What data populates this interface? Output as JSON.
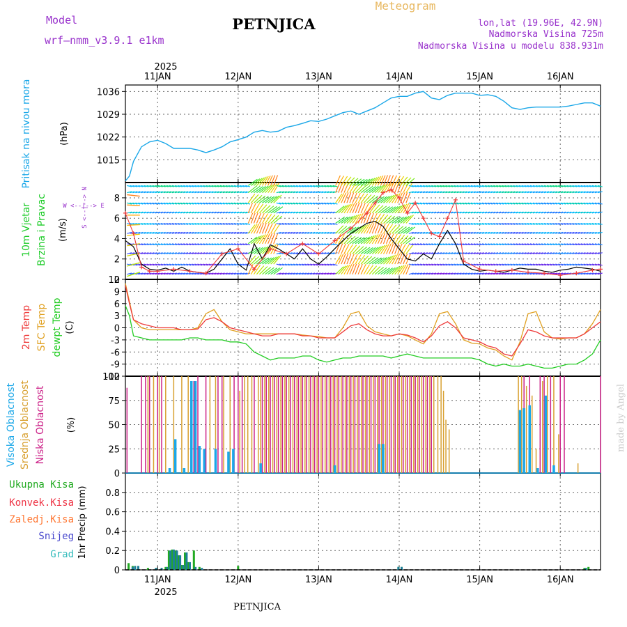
{
  "header": {
    "model_label": "Model",
    "model_name": "wrf—nmm_v3.9.1  e1km",
    "station_title": "PETNJICA",
    "meteogram_label": "Meteogram",
    "coords": "lon,lat (19.96E, 42.9N)",
    "altitude": "Nadmorska Visina 725m",
    "model_altitude": "Nadmorska Visina u modelu 838.931m",
    "footer_station": "PETNJICA",
    "credit": "made by Angel"
  },
  "colors": {
    "pressure": "#1aa7e8",
    "wind_label": "#1fcc2a",
    "temp2m": "#ee3a3a",
    "sfc": "#e0a020",
    "dewpt": "#22cc22",
    "high_cloud": "#1aa7e8",
    "mid_cloud": "#d8a030",
    "low_cloud": "#cc2288",
    "precip_total": "#22aa22",
    "precip_conv": "#ee3344",
    "precip_frz": "#ff7733",
    "precip_snow": "#4444cc",
    "precip_grad": "#33bbbb",
    "purple": "#9933cc"
  },
  "chart_data": [
    {
      "type": "line",
      "title": "",
      "ylabel": "Pritisak na nivou mora",
      "yunit": "(hPa)",
      "x_ticks": [
        "11JAN",
        "12JAN",
        "13JAN",
        "14JAN",
        "15JAN",
        "16JAN"
      ],
      "year_label": "2025",
      "xlim_days": [
        10.6,
        16.5
      ],
      "ylim": [
        1008,
        1038
      ],
      "yticks": [
        1015,
        1022,
        1029,
        1036
      ],
      "grid": true,
      "series": [
        {
          "x": [
            10.6,
            10.65,
            10.7,
            10.8,
            10.9,
            11.0,
            11.1,
            11.2,
            11.3,
            11.4,
            11.5,
            11.6,
            11.7,
            11.8,
            11.9,
            12.0,
            12.1,
            12.2,
            12.3,
            12.4,
            12.5,
            12.6,
            12.7,
            12.8,
            12.9,
            13.0,
            13.1,
            13.2,
            13.3,
            13.4,
            13.5,
            13.6,
            13.7,
            13.8,
            13.9,
            14.0,
            14.1,
            14.2,
            14.3,
            14.4,
            14.5,
            14.6,
            14.7,
            14.8,
            14.9,
            15.0,
            15.1,
            15.2,
            15.3,
            15.4,
            15.5,
            15.6,
            15.7,
            15.8,
            15.9,
            16.0,
            16.1,
            16.2,
            16.3,
            16.4,
            16.5
          ],
          "values": [
            1008.5,
            1010,
            1014.5,
            1019,
            1020.5,
            1021,
            1020,
            1018.5,
            1018.5,
            1018.5,
            1018,
            1017.2,
            1018,
            1019,
            1020.5,
            1021.2,
            1022,
            1023.5,
            1024,
            1023.5,
            1023.8,
            1025,
            1025.5,
            1026.2,
            1027,
            1026.8,
            1027.5,
            1028.5,
            1029.5,
            1030,
            1029,
            1030,
            1031,
            1032.5,
            1034,
            1034.5,
            1034.5,
            1035.5,
            1036,
            1034,
            1033.5,
            1034.8,
            1035.5,
            1035.5,
            1035.5,
            1034.8,
            1035,
            1034.5,
            1033,
            1031,
            1030.5,
            1031,
            1031.2,
            1031.2,
            1031.2,
            1031.2,
            1031.5,
            1032,
            1032.5,
            1032.5,
            1031.5
          ]
        }
      ]
    },
    {
      "type": "line",
      "title": "",
      "ylabel_lines": [
        "10m Vjetar",
        "Brzina i Pravac"
      ],
      "yunit": "(m/s)",
      "compass": "W <--|--> E",
      "compass_v": "S <--|--> N",
      "ylim": [
        0,
        9.5
      ],
      "yticks": [
        0,
        2,
        4,
        6,
        8
      ],
      "grid": true,
      "wind_row_levels": [
        0.5,
        1.5,
        2.5,
        3.5,
        4.5,
        5.5,
        6.5,
        7.5,
        8.5,
        9.2
      ],
      "speed_line_x": [
        10.6,
        10.7,
        10.8,
        10.9,
        11.0,
        11.1,
        11.2,
        11.3,
        11.4,
        11.5,
        11.6,
        11.7,
        11.8,
        11.9,
        12.0,
        12.1,
        12.2,
        12.3,
        12.4,
        12.5,
        12.6,
        12.7,
        12.8,
        12.9,
        13.0,
        13.1,
        13.2,
        13.3,
        13.4,
        13.5,
        13.6,
        13.7,
        13.8,
        13.9,
        14.0,
        14.1,
        14.2,
        14.3,
        14.4,
        14.5,
        14.6,
        14.7,
        14.8,
        14.9,
        15.0,
        15.1,
        15.2,
        15.3,
        15.4,
        15.5,
        15.6,
        15.7,
        15.8,
        15.9,
        16.0,
        16.1,
        16.2,
        16.3,
        16.4,
        16.5
      ],
      "speed_line": [
        3.8,
        3.2,
        1.5,
        1.0,
        0.9,
        1.1,
        0.8,
        1.2,
        0.8,
        0.7,
        0.6,
        1.0,
        2.0,
        3.0,
        1.5,
        0.9,
        3.5,
        2.0,
        3.4,
        3.0,
        2.5,
        2.0,
        3.0,
        2.0,
        1.5,
        2.2,
        3.0,
        3.8,
        4.5,
        5.0,
        5.5,
        5.7,
        5.2,
        4.0,
        3.0,
        2.0,
        1.8,
        2.5,
        2.0,
        3.5,
        4.8,
        3.5,
        1.5,
        1.0,
        0.8,
        0.9,
        0.8,
        0.7,
        0.9,
        1.1,
        1.0,
        1.0,
        0.8,
        0.7,
        0.9,
        1.0,
        1.2,
        1.1,
        1.0,
        0.8
      ],
      "gust_x": [
        10.6,
        10.7,
        10.8,
        10.9,
        11.0,
        11.2,
        11.4,
        11.6,
        11.8,
        12.0,
        12.2,
        12.4,
        12.6,
        12.8,
        13.0,
        13.2,
        13.4,
        13.6,
        13.7,
        13.8,
        13.9,
        14.0,
        14.1,
        14.2,
        14.3,
        14.4,
        14.5,
        14.6,
        14.7,
        14.8,
        15.0,
        15.2,
        15.4,
        15.6,
        15.8,
        16.0,
        16.2,
        16.4,
        16.5
      ],
      "gust": [
        6.5,
        4.5,
        1.2,
        0.8,
        0.8,
        1.0,
        0.8,
        0.6,
        2.5,
        3.0,
        1.0,
        3.0,
        2.5,
        3.5,
        2.5,
        3.8,
        5.0,
        6.5,
        7.5,
        8.5,
        8.8,
        8.0,
        6.5,
        7.5,
        6.0,
        4.5,
        4.2,
        6.0,
        7.8,
        1.8,
        1.0,
        0.8,
        0.9,
        0.7,
        0.6,
        0.4,
        0.6,
        0.9,
        1.0
      ]
    },
    {
      "type": "line",
      "title": "",
      "ylabel_lines": [
        "2m Temp",
        "SFC Temp",
        "dewpt Temp"
      ],
      "yunit": "(C)",
      "ylim": [
        -12,
        12
      ],
      "yticks": [
        -12,
        -9,
        -6,
        -3,
        0,
        3,
        6,
        9,
        12
      ],
      "grid": true,
      "x": [
        10.6,
        10.65,
        10.7,
        10.8,
        10.9,
        11.0,
        11.1,
        11.2,
        11.3,
        11.4,
        11.5,
        11.6,
        11.7,
        11.8,
        11.9,
        12.0,
        12.1,
        12.2,
        12.3,
        12.4,
        12.5,
        12.6,
        12.7,
        12.8,
        12.9,
        13.0,
        13.1,
        13.2,
        13.3,
        13.4,
        13.5,
        13.6,
        13.7,
        13.8,
        13.9,
        14.0,
        14.1,
        14.2,
        14.3,
        14.4,
        14.5,
        14.6,
        14.7,
        14.8,
        14.9,
        15.0,
        15.1,
        15.2,
        15.3,
        15.4,
        15.5,
        15.6,
        15.7,
        15.8,
        15.9,
        16.0,
        16.1,
        16.2,
        16.3,
        16.4,
        16.5
      ],
      "series": [
        {
          "name": "2m Temp",
          "values": [
            10.5,
            6,
            2,
            1,
            0.5,
            0,
            0,
            0,
            -0.5,
            -0.5,
            -0.3,
            2,
            2.5,
            1.5,
            0,
            -0.5,
            -1,
            -1.5,
            -2,
            -2,
            -1.5,
            -1.5,
            -1.5,
            -2,
            -2,
            -2.5,
            -2.5,
            -2.5,
            -1,
            0.5,
            1,
            -0.5,
            -1.5,
            -2,
            -2,
            -1.5,
            -1.8,
            -2.5,
            -3.5,
            -2,
            0.5,
            1.5,
            0,
            -2.5,
            -3,
            -3.5,
            -4.5,
            -5,
            -6.5,
            -7,
            -4,
            -0.5,
            -1,
            -2,
            -2.5,
            -2.5,
            -2.5,
            -2.5,
            -1.5,
            0,
            1.5
          ]
        },
        {
          "name": "SFC Temp",
          "values": [
            11,
            6.5,
            2,
            0,
            -0.5,
            -0.5,
            -0.5,
            -0.5,
            -0.5,
            -0.5,
            0,
            3.5,
            4.5,
            1.5,
            -0.5,
            -1,
            -1.5,
            -1.5,
            -1.5,
            -1.5,
            -1.5,
            -1.5,
            -1.5,
            -1.8,
            -2,
            -2.2,
            -2.5,
            -2.5,
            0,
            3.5,
            4,
            0.5,
            -1,
            -1.5,
            -2,
            -1.5,
            -2,
            -3,
            -4,
            -1.5,
            3.5,
            4,
            1,
            -3,
            -3.8,
            -4,
            -5,
            -5.5,
            -7,
            -8,
            -3.5,
            3.5,
            4,
            -1,
            -2.5,
            -2.8,
            -2.5,
            -2.5,
            -1.5,
            1,
            4.5
          ]
        },
        {
          "name": "dewpt Temp",
          "values": [
            5.5,
            3,
            -2,
            -2.5,
            -3,
            -3,
            -3,
            -3,
            -3,
            -2.5,
            -2.5,
            -3,
            -3,
            -3,
            -3.5,
            -3.5,
            -4,
            -6,
            -7,
            -8,
            -7.5,
            -7.5,
            -7.5,
            -7,
            -7,
            -8,
            -8.5,
            -8,
            -7.5,
            -7.5,
            -7,
            -7,
            -7,
            -7,
            -7.5,
            -7,
            -6.5,
            -7,
            -7.5,
            -7.5,
            -7.5,
            -7.5,
            -7.5,
            -7.5,
            -7.5,
            -8,
            -9,
            -9.5,
            -9,
            -9.5,
            -9.5,
            -9,
            -9.5,
            -10,
            -10,
            -9.5,
            -9,
            -9,
            -8,
            -6.5,
            -3
          ]
        }
      ]
    },
    {
      "type": "bar",
      "title": "",
      "ylabel_lines": [
        "Visoka Oblacnost",
        "Srednja Oblacnost",
        "Niska Oblacnost"
      ],
      "yunit": "(%)",
      "ylim": [
        0,
        100
      ],
      "yticks": [
        0,
        25,
        50,
        75,
        100
      ],
      "grid": true,
      "bars": {
        "low_x": [
          10.62,
          10.8,
          10.85,
          10.9,
          11.0,
          11.05,
          11.45,
          11.5,
          11.6,
          11.75,
          11.8,
          11.95,
          12.0,
          12.05,
          12.2,
          12.3,
          12.35,
          12.4,
          12.45,
          12.5,
          12.55,
          12.6,
          12.65,
          12.7,
          12.75,
          12.8,
          12.85,
          12.9,
          12.95,
          13.0,
          13.05,
          13.1,
          13.15,
          13.2,
          13.25,
          13.3,
          13.35,
          13.4,
          13.45,
          13.5,
          13.55,
          13.6,
          13.65,
          13.7,
          13.75,
          13.8,
          13.85,
          13.9,
          13.95,
          14.0,
          14.05,
          14.1,
          14.15,
          14.2,
          14.25,
          14.3,
          14.35,
          14.4,
          15.55,
          15.62,
          15.75,
          15.8,
          15.88,
          16.0,
          16.05,
          16.5
        ],
        "low_v": [
          88,
          100,
          100,
          100,
          100,
          100,
          95,
          100,
          100,
          100,
          100,
          100,
          100,
          100,
          100,
          100,
          100,
          100,
          100,
          100,
          100,
          100,
          100,
          100,
          100,
          100,
          100,
          100,
          100,
          100,
          100,
          100,
          100,
          100,
          100,
          100,
          100,
          100,
          100,
          100,
          100,
          100,
          100,
          100,
          100,
          100,
          100,
          100,
          100,
          100,
          100,
          100,
          100,
          100,
          100,
          100,
          100,
          100,
          100,
          100,
          100,
          100,
          100,
          100,
          100,
          100
        ],
        "mid_x": [
          10.88,
          10.95,
          11.02,
          11.1,
          11.2,
          11.3,
          11.38,
          11.65,
          11.72,
          11.82,
          11.9,
          12.02,
          12.08,
          12.12,
          12.17,
          12.25,
          12.28,
          12.33,
          12.38,
          12.43,
          12.48,
          12.53,
          12.58,
          12.63,
          12.68,
          12.73,
          12.78,
          12.83,
          12.88,
          12.93,
          12.98,
          13.03,
          13.08,
          13.13,
          13.18,
          13.23,
          13.28,
          13.33,
          13.38,
          13.43,
          13.48,
          13.53,
          13.58,
          13.63,
          13.68,
          13.73,
          13.78,
          13.83,
          13.88,
          13.93,
          13.98,
          14.03,
          14.08,
          14.13,
          14.18,
          14.23,
          14.28,
          14.33,
          14.38,
          14.43,
          14.48,
          14.52,
          14.55,
          14.58,
          14.62,
          15.48,
          15.52,
          15.58,
          15.65,
          15.7,
          15.78,
          15.84,
          15.92,
          15.98,
          16.22
        ],
        "mid_v": [
          100,
          100,
          100,
          100,
          100,
          100,
          100,
          100,
          100,
          100,
          100,
          85,
          100,
          100,
          100,
          100,
          100,
          100,
          100,
          100,
          100,
          100,
          100,
          100,
          100,
          100,
          100,
          100,
          100,
          100,
          100,
          100,
          100,
          100,
          100,
          100,
          100,
          100,
          100,
          100,
          100,
          100,
          100,
          100,
          100,
          100,
          100,
          100,
          100,
          100,
          100,
          100,
          100,
          100,
          100,
          100,
          100,
          100,
          100,
          100,
          100,
          100,
          85,
          55,
          45,
          100,
          100,
          90,
          80,
          25,
          95,
          100,
          100,
          40,
          10
        ],
        "high_x": [
          11.15,
          11.22,
          11.33,
          11.42,
          11.47,
          11.52,
          11.58,
          11.72,
          11.88,
          11.94,
          12.28,
          13.2,
          13.75,
          13.8,
          15.5,
          15.55,
          15.62,
          15.72,
          15.82,
          15.92
        ],
        "high_v": [
          5,
          35,
          5,
          95,
          95,
          28,
          25,
          25,
          22,
          25,
          10,
          8,
          30,
          30,
          65,
          67,
          70,
          5,
          80,
          8
        ]
      }
    },
    {
      "type": "bar",
      "title": "",
      "ylabel": "1hr Precip (mm)",
      "legend": [
        "Ukupna  Kisa",
        "Konvek.Kisa",
        "Zaledj.Kisa",
        "Snijeg",
        "Grad"
      ],
      "ylim": [
        0,
        1.0
      ],
      "yticks": [
        0,
        0.2,
        0.4,
        0.6,
        0.8
      ],
      "grid": true,
      "total_x": [
        10.64,
        10.69,
        10.72,
        10.76,
        10.88,
        10.98,
        11.05,
        11.1,
        11.14,
        11.18,
        11.22,
        11.26,
        11.3,
        11.34,
        11.38,
        11.45,
        11.52,
        12.0,
        13.99,
        14.03,
        16.3,
        16.35
      ],
      "total_v": [
        0.07,
        0.04,
        0.04,
        0.04,
        0.02,
        0.02,
        0.02,
        0.03,
        0.2,
        0.21,
        0.2,
        0.15,
        0.05,
        0.18,
        0.08,
        0.2,
        0.03,
        0.04,
        0.03,
        0.03,
        0.02,
        0.03
      ],
      "snow_x": [
        10.69,
        10.72,
        10.76,
        10.98,
        11.05,
        11.12,
        11.16,
        11.2,
        11.24,
        11.28,
        11.32,
        11.36,
        11.4,
        11.47,
        11.55,
        13.99,
        14.03,
        16.32
      ],
      "snow_v": [
        0.03,
        0.04,
        0.04,
        0.02,
        0.02,
        0.03,
        0.2,
        0.21,
        0.2,
        0.15,
        0.05,
        0.18,
        0.08,
        0.03,
        0.02,
        0.03,
        0.03,
        0.02
      ]
    }
  ]
}
